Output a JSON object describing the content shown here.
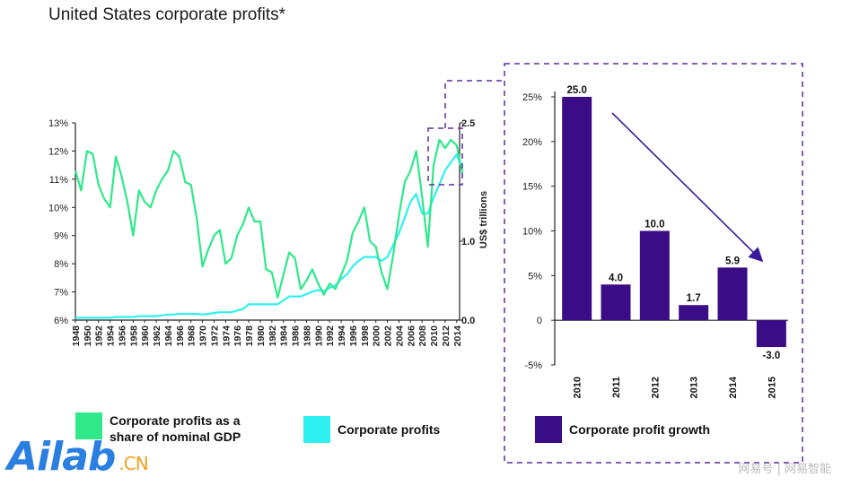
{
  "title": "United States corporate profits*",
  "colors": {
    "share_line": "#2ee88a",
    "profits_line": "#2ff0f0",
    "growth_bar": "#3a0c86",
    "dash_box": "#5a2d9e",
    "arrow": "#3a1a9a"
  },
  "chart_data": [
    {
      "type": "line",
      "x": [
        1948,
        1949,
        1950,
        1951,
        1952,
        1953,
        1954,
        1955,
        1956,
        1957,
        1958,
        1959,
        1960,
        1961,
        1962,
        1963,
        1964,
        1965,
        1966,
        1967,
        1968,
        1969,
        1970,
        1971,
        1972,
        1973,
        1974,
        1975,
        1976,
        1977,
        1978,
        1979,
        1980,
        1981,
        1982,
        1983,
        1984,
        1985,
        1986,
        1987,
        1988,
        1989,
        1990,
        1991,
        1992,
        1993,
        1994,
        1995,
        1996,
        1997,
        1998,
        1999,
        2000,
        2001,
        2002,
        2003,
        2004,
        2005,
        2006,
        2007,
        2008,
        2009,
        2010,
        2011,
        2012,
        2013,
        2014,
        2015
      ],
      "x_tick_labels": [
        "1948",
        "1950",
        "1952",
        "1954",
        "1956",
        "1958",
        "1960",
        "1962",
        "1964",
        "1966",
        "1968",
        "1970",
        "1972",
        "1974",
        "1976",
        "1978",
        "1980",
        "1982",
        "1984",
        "1986",
        "1988",
        "1990",
        "1992",
        "1994",
        "1996",
        "1998",
        "2000",
        "2002",
        "2004",
        "2006",
        "2008",
        "2010",
        "2012",
        "2014"
      ],
      "series": [
        {
          "name": "Corporate profits as a share of nominal GDP",
          "axis": "left",
          "values": [
            11.3,
            10.6,
            12.0,
            11.9,
            10.8,
            10.3,
            10.0,
            11.8,
            11.1,
            10.2,
            9.0,
            10.6,
            10.2,
            10.0,
            10.6,
            11.0,
            11.3,
            12.0,
            11.8,
            10.9,
            10.8,
            9.6,
            7.9,
            8.5,
            9.0,
            9.2,
            8.0,
            8.2,
            9.0,
            9.4,
            10.0,
            9.5,
            9.5,
            7.8,
            7.7,
            6.8,
            7.6,
            8.4,
            8.2,
            7.1,
            7.4,
            7.8,
            7.3,
            6.9,
            7.3,
            7.1,
            7.6,
            8.1,
            9.1,
            9.5,
            10.0,
            8.8,
            8.6,
            7.7,
            7.1,
            8.3,
            9.7,
            10.9,
            11.3,
            12.0,
            10.4,
            8.6,
            11.5,
            12.4,
            12.1,
            12.4,
            12.2,
            11.2
          ],
          "ylim": [
            6,
            13
          ],
          "y_ticks": [
            "6%",
            "7%",
            "8%",
            "9%",
            "10%",
            "11%",
            "12%",
            "13%"
          ]
        },
        {
          "name": "Corporate profits",
          "axis": "right",
          "values": [
            0.03,
            0.03,
            0.03,
            0.03,
            0.03,
            0.03,
            0.03,
            0.04,
            0.04,
            0.04,
            0.04,
            0.05,
            0.05,
            0.05,
            0.05,
            0.06,
            0.07,
            0.07,
            0.08,
            0.08,
            0.08,
            0.08,
            0.07,
            0.08,
            0.09,
            0.1,
            0.1,
            0.1,
            0.12,
            0.14,
            0.2,
            0.2,
            0.2,
            0.2,
            0.2,
            0.2,
            0.25,
            0.3,
            0.3,
            0.3,
            0.33,
            0.36,
            0.38,
            0.37,
            0.41,
            0.44,
            0.52,
            0.58,
            0.68,
            0.75,
            0.8,
            0.8,
            0.8,
            0.75,
            0.8,
            0.95,
            1.1,
            1.3,
            1.5,
            1.6,
            1.35,
            1.35,
            1.55,
            1.72,
            1.9,
            2.0,
            2.1,
            1.9
          ],
          "ylim": [
            0,
            2.5
          ],
          "y_ticks": [
            "0.0",
            "1.0",
            "2.5"
          ],
          "y_tick_values": [
            0,
            1.0,
            2.5
          ]
        }
      ],
      "ylabel_right": "US$ trillions"
    },
    {
      "type": "bar",
      "categories": [
        "2010",
        "2011",
        "2012",
        "2013",
        "2014",
        "2015"
      ],
      "values": [
        25.0,
        4.0,
        10.0,
        1.7,
        5.9,
        -3.0
      ],
      "data_labels": [
        "25.0",
        "4.0",
        "10.0",
        "1.7",
        "5.9",
        "-3.0"
      ],
      "name": "Corporate profit growth",
      "ylim": [
        -5,
        25
      ],
      "y_ticks": [
        "-5%",
        "0",
        "5%",
        "10%",
        "15%",
        "20%",
        "25%"
      ],
      "y_tick_values": [
        -5,
        0,
        5,
        10,
        15,
        20,
        25
      ]
    }
  ],
  "legend": [
    {
      "label": "Corporate profits as a share of nominal GDP"
    },
    {
      "label": "Corporate profits"
    },
    {
      "label": "Corporate profit growth"
    }
  ],
  "logo": {
    "text": "Ailab",
    "suffix": ".CN"
  },
  "watermark": "网易号 | 网易智能"
}
